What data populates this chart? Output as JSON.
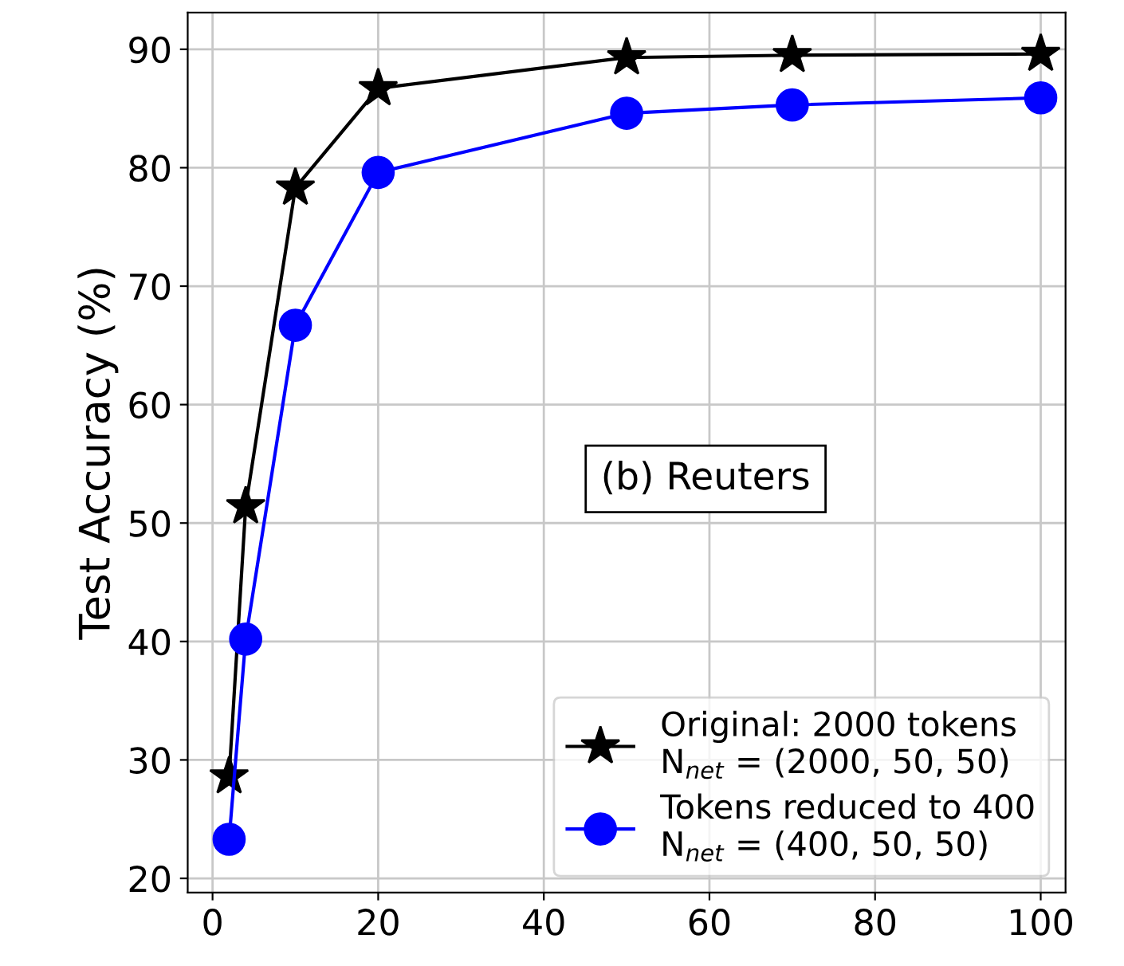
{
  "chart_data": {
    "type": "line",
    "ylabel": "Test Accuracy (%)",
    "x": [
      2,
      4,
      10,
      20,
      50,
      70,
      100
    ],
    "series": [
      {
        "name": "Original: 2000 tokens\nN$_{net}$ = (2000, 50, 50)",
        "color": "#000000",
        "marker": "star",
        "values": [
          28.6,
          51.4,
          78.3,
          86.7,
          89.3,
          89.5,
          89.6
        ]
      },
      {
        "name": "Tokens reduced to 400\nN$_{net}$ = (400, 50, 50)",
        "color": "#0000ff",
        "marker": "circle",
        "values": [
          23.3,
          40.2,
          66.7,
          79.6,
          84.6,
          85.3,
          85.9
        ]
      }
    ],
    "xlim": [
      -3,
      103
    ],
    "xticks": [
      0,
      20,
      40,
      60,
      80,
      100
    ],
    "ylim": [
      18.8,
      93.1
    ],
    "yticks": [
      20,
      30,
      40,
      50,
      60,
      70,
      80,
      90
    ],
    "annotations": [
      "(b) Reuters"
    ],
    "grid": true,
    "legend": "bottom right"
  }
}
